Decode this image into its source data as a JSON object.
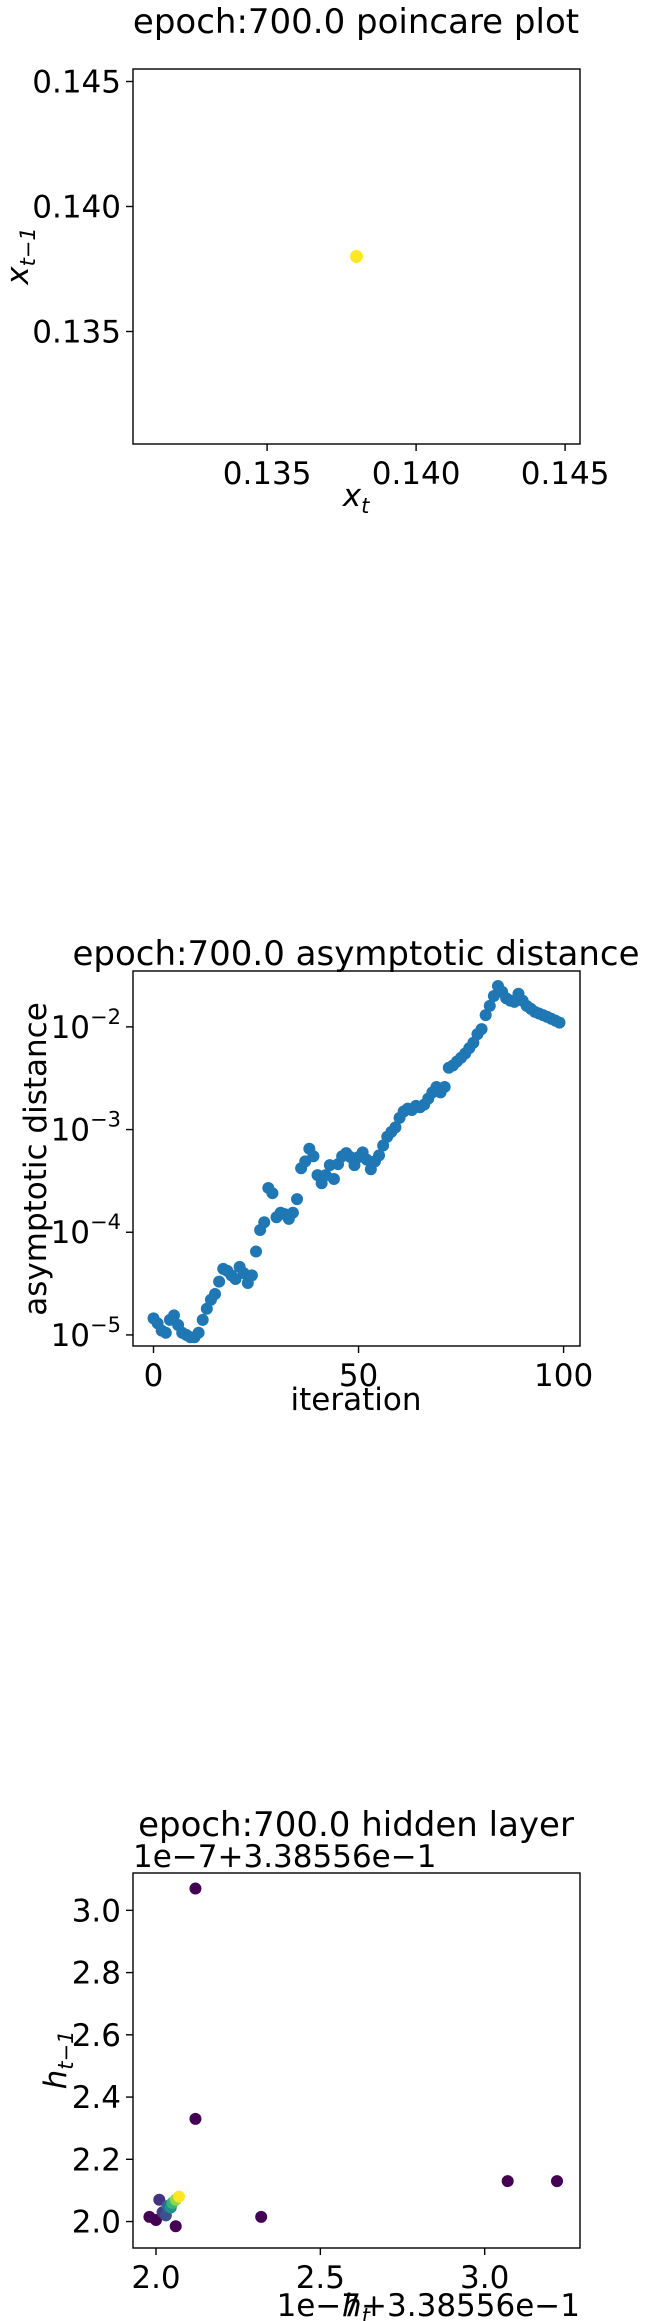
{
  "chart_data": [
    {
      "type": "scatter",
      "title": "epoch:700.0 poincare plot",
      "xlabel_base": "x",
      "xlabel_sub": "t",
      "ylabel_base": "x",
      "ylabel_sub": "t−1",
      "xlim": [
        0.1305,
        0.1455
      ],
      "ylim": [
        0.1305,
        0.1455
      ],
      "xticks": [
        0.135,
        0.14,
        0.145
      ],
      "xtick_labels": [
        "0.135",
        "0.140",
        "0.145"
      ],
      "yticks": [
        0.135,
        0.14,
        0.145
      ],
      "ytick_labels": [
        "0.135",
        "0.140",
        "0.145"
      ],
      "points": [
        [
          0.138,
          0.138
        ]
      ],
      "point_color": "#fde725"
    },
    {
      "type": "scatter",
      "title": "epoch:700.0 asymptotic distance",
      "xlabel": "iteration",
      "ylabel": "asymptotic distance",
      "yscale": "log",
      "xlim": [
        -5,
        104
      ],
      "ylim": [
        7.8e-06,
        0.035
      ],
      "xticks": [
        0,
        50,
        100
      ],
      "xtick_labels": [
        "0",
        "50",
        "100"
      ],
      "yticks": [
        1e-05,
        0.0001,
        0.001,
        0.01
      ],
      "ytick_mantissa": [
        "10",
        "10",
        "10",
        "10"
      ],
      "ytick_exponents": [
        "−5",
        "−4",
        "−3",
        "−2"
      ],
      "point_color": "#1f77b4",
      "x": [
        0,
        1,
        2,
        3,
        4,
        5,
        6,
        7,
        8,
        9,
        10,
        11,
        12,
        13,
        14,
        15,
        16,
        17,
        18,
        19,
        20,
        21,
        22,
        23,
        24,
        25,
        26,
        27,
        28,
        29,
        30,
        31,
        32,
        33,
        34,
        35,
        36,
        37,
        38,
        39,
        40,
        41,
        42,
        43,
        44,
        45,
        46,
        47,
        48,
        49,
        50,
        51,
        52,
        53,
        54,
        55,
        56,
        57,
        58,
        59,
        60,
        61,
        62,
        63,
        64,
        65,
        66,
        67,
        68,
        69,
        70,
        71,
        72,
        73,
        74,
        75,
        76,
        77,
        78,
        79,
        80,
        81,
        82,
        83,
        84,
        85,
        86,
        87,
        88,
        89,
        90,
        91,
        92,
        93,
        94,
        95,
        96,
        97,
        98,
        99
      ],
      "y": [
        1.45e-05,
        1.3e-05,
        1.1e-05,
        1.05e-05,
        1.4e-05,
        1.55e-05,
        1.25e-05,
        1.05e-05,
        1e-05,
        9.5e-06,
        9.5e-06,
        1.05e-05,
        1.4e-05,
        1.8e-05,
        2.2e-05,
        2.5e-05,
        3.3e-05,
        4.4e-05,
        4.2e-05,
        3.8e-05,
        3.5e-05,
        4.6e-05,
        4e-05,
        3.2e-05,
        3.8e-05,
        6.5e-05,
        0.000105,
        0.000125,
        0.00027,
        0.00024,
        0.00014,
        0.000155,
        0.00015,
        0.000135,
        0.000155,
        0.00021,
        0.00042,
        0.00049,
        0.00065,
        0.00055,
        0.00036,
        0.0003,
        0.00036,
        0.00045,
        0.00033,
        0.00046,
        0.00055,
        0.00059,
        0.00054,
        0.00045,
        0.00054,
        0.0006,
        0.00051,
        0.00041,
        0.00049,
        0.00056,
        0.0007,
        0.00085,
        0.00095,
        0.00105,
        0.0013,
        0.0015,
        0.0016,
        0.00155,
        0.0017,
        0.00165,
        0.00175,
        0.002,
        0.0023,
        0.0026,
        0.0023,
        0.0026,
        0.004,
        0.0042,
        0.0046,
        0.005,
        0.0055,
        0.0062,
        0.007,
        0.0085,
        0.0095,
        0.013,
        0.016,
        0.02,
        0.025,
        0.022,
        0.019,
        0.018,
        0.0175,
        0.021,
        0.018,
        0.016,
        0.015,
        0.014,
        0.0135,
        0.013,
        0.0125,
        0.012,
        0.0115,
        0.011
      ]
    },
    {
      "type": "scatter",
      "title": "epoch:700.0 hidden layer",
      "xlabel_base": "h",
      "xlabel_sub": "t",
      "ylabel_base": "h",
      "ylabel_sub": "t−1",
      "x_offset_text": "1e−7+3.38556e−1",
      "y_offset_text": "1e−7+3.38556e−1",
      "xlim": [
        1.93,
        3.29
      ],
      "ylim": [
        1.915,
        3.12
      ],
      "xticks": [
        2.0,
        2.5,
        3.0
      ],
      "xtick_labels": [
        "2.0",
        "2.5",
        "3.0"
      ],
      "yticks": [
        2.0,
        2.2,
        2.4,
        2.6,
        2.8,
        3.0
      ],
      "ytick_labels": [
        "2.0",
        "2.2",
        "2.4",
        "2.6",
        "2.8",
        "3.0"
      ],
      "points": [
        [
          2.12,
          3.07,
          "#440154"
        ],
        [
          2.12,
          2.33,
          "#440154"
        ],
        [
          3.07,
          2.13,
          "#440154"
        ],
        [
          3.22,
          2.13,
          "#440154"
        ],
        [
          2.32,
          2.015,
          "#440154"
        ],
        [
          2.06,
          1.985,
          "#440154"
        ],
        [
          1.98,
          2.015,
          "#440154"
        ],
        [
          2.0,
          2.005,
          "#440154"
        ],
        [
          2.01,
          2.07,
          "#46327e"
        ],
        [
          2.02,
          2.03,
          "#443983"
        ],
        [
          2.03,
          2.02,
          "#3b528b"
        ],
        [
          2.035,
          2.05,
          "#31688e"
        ],
        [
          2.045,
          2.045,
          "#21918c"
        ],
        [
          2.05,
          2.06,
          "#35b779"
        ],
        [
          2.06,
          2.07,
          "#90d743"
        ],
        [
          2.07,
          2.08,
          "#fde725"
        ]
      ]
    }
  ]
}
